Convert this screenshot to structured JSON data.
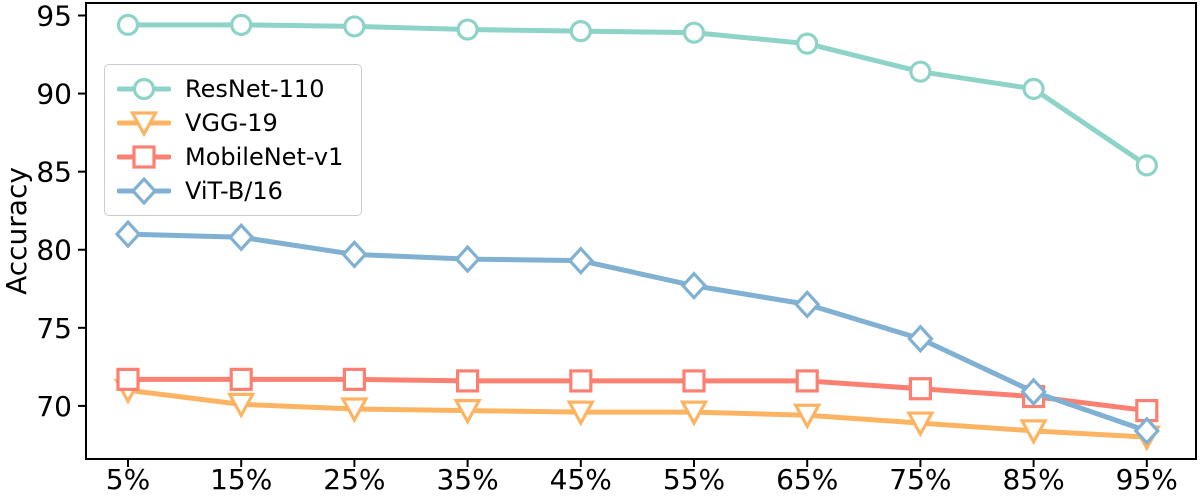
{
  "figure": {
    "background": "#ffffff",
    "axis_color": "#000000",
    "text_color": "#000000",
    "marker_fill": "#ffffff",
    "legend_border_color": "#cccccc"
  },
  "chart_data": {
    "type": "line",
    "title": "",
    "xlabel": "",
    "ylabel": "Accuracy",
    "categories": [
      "5%",
      "15%",
      "25%",
      "35%",
      "45%",
      "55%",
      "65%",
      "75%",
      "85%",
      "95%"
    ],
    "y_ticks": [
      70,
      75,
      80,
      85,
      90,
      95
    ],
    "ylim": [
      66.6,
      95.8
    ],
    "grid": false,
    "legend_position": "upper-left",
    "series": [
      {
        "name": "ResNet-110",
        "color": "#8dd3c7",
        "marker": "circle",
        "values": [
          94.4,
          94.4,
          94.3,
          94.1,
          94.0,
          93.9,
          93.2,
          91.4,
          90.3,
          85.4
        ]
      },
      {
        "name": "VGG-19",
        "color": "#fdb462",
        "marker": "triangle-down",
        "values": [
          71.0,
          70.1,
          69.8,
          69.7,
          69.6,
          69.6,
          69.4,
          68.9,
          68.4,
          68.0
        ]
      },
      {
        "name": "MobileNet-v1",
        "color": "#fb8072",
        "marker": "square",
        "values": [
          71.7,
          71.7,
          71.7,
          71.6,
          71.6,
          71.6,
          71.6,
          71.1,
          70.6,
          69.7
        ]
      },
      {
        "name": "ViT-B/16",
        "color": "#80b1d3",
        "marker": "diamond",
        "values": [
          81.0,
          80.8,
          79.7,
          79.4,
          79.3,
          77.7,
          76.5,
          74.3,
          70.9,
          68.4
        ]
      }
    ]
  }
}
